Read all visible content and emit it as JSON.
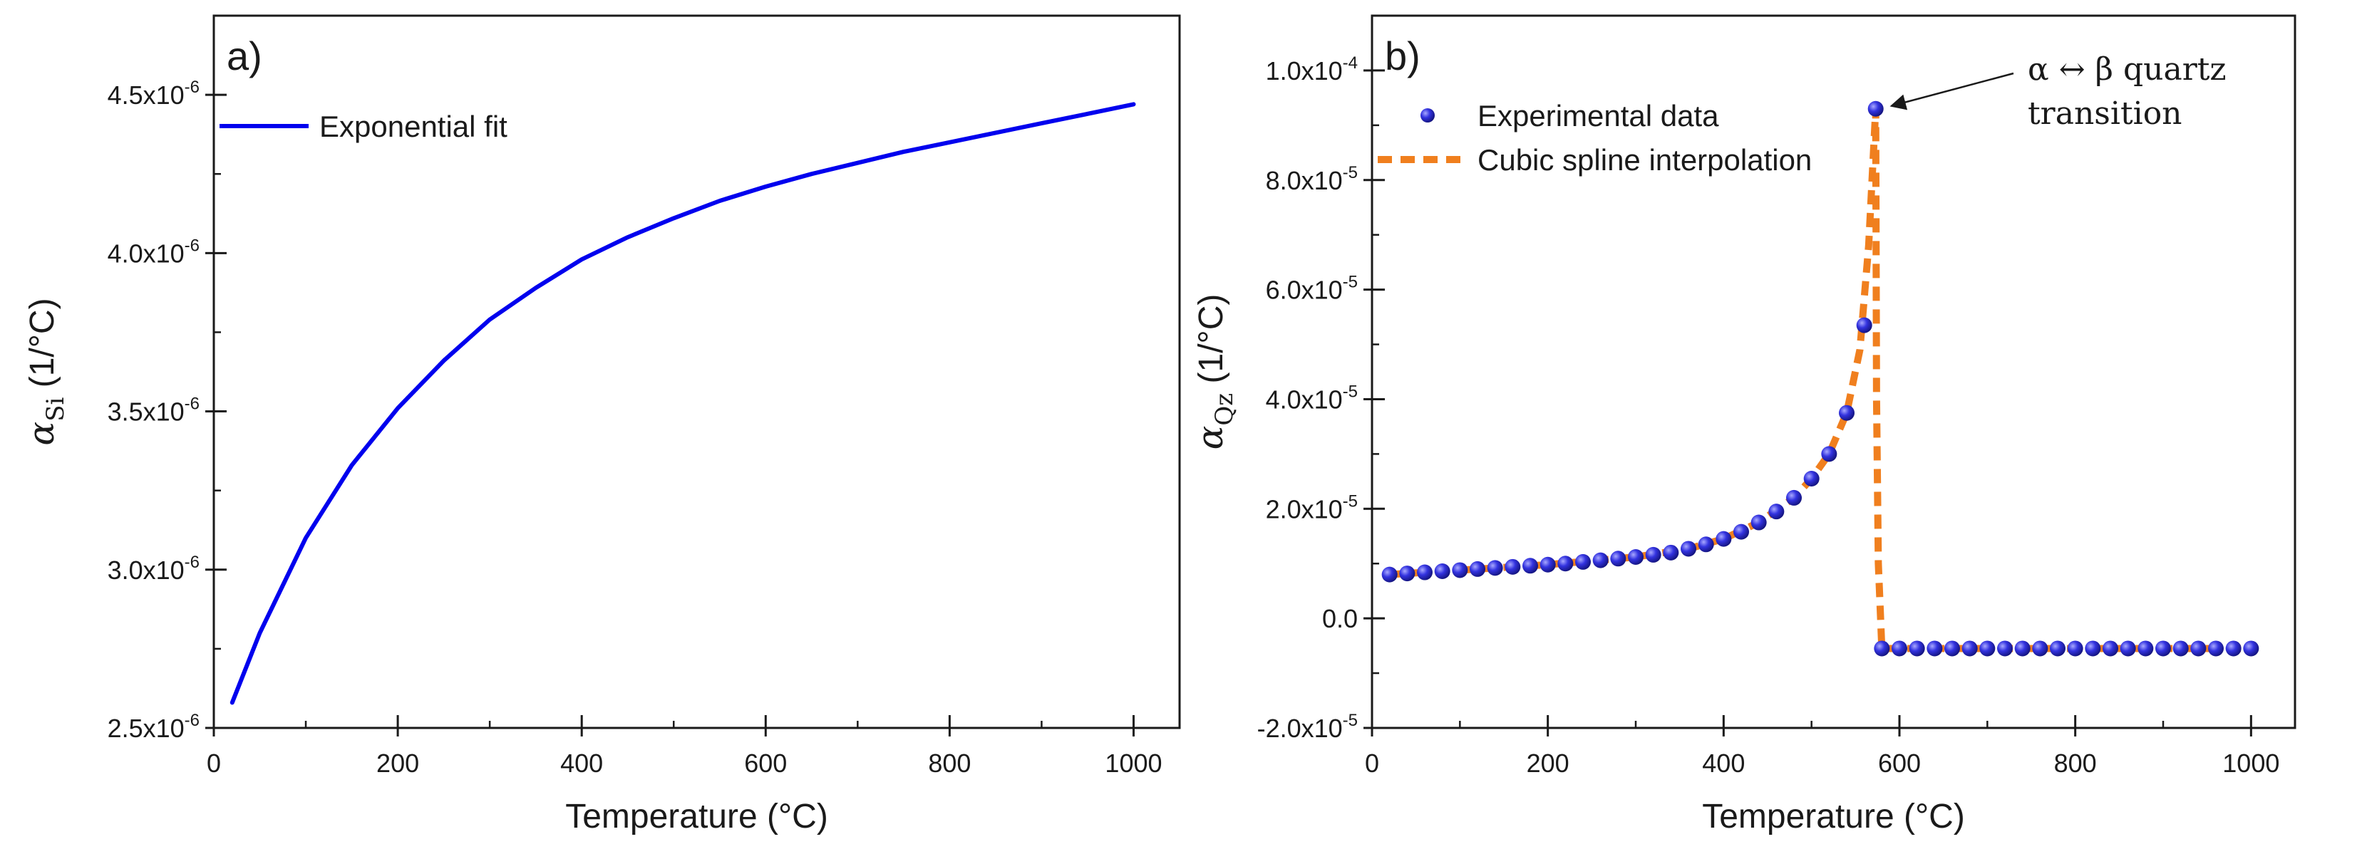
{
  "chart_data": [
    {
      "type": "line",
      "panel_label": "a)",
      "xlabel": "Temperature (°C)",
      "ylabel": {
        "symbol": "α",
        "subscript": "Si",
        "unit": "(1/°C)"
      },
      "xlim": [
        0,
        1050
      ],
      "ylim": [
        2.5e-06,
        4.75e-06
      ],
      "x_ticks": [
        0,
        200,
        400,
        600,
        800,
        1000
      ],
      "y_ticks": [
        {
          "value": 2.5e-06,
          "mantissa": "2.5x10",
          "exp": "-6"
        },
        {
          "value": 3e-06,
          "mantissa": "3.0x10",
          "exp": "-6"
        },
        {
          "value": 3.5e-06,
          "mantissa": "3.5x10",
          "exp": "-6"
        },
        {
          "value": 4e-06,
          "mantissa": "4.0x10",
          "exp": "-6"
        },
        {
          "value": 4.5e-06,
          "mantissa": "4.5x10",
          "exp": "-6"
        }
      ],
      "legend": {
        "placement": "top-left"
      },
      "series": [
        {
          "name": "Exponential fit",
          "style": "solid-line",
          "color": "#0000ee",
          "x": [
            20,
            50,
            100,
            150,
            200,
            250,
            300,
            350,
            400,
            450,
            500,
            550,
            600,
            650,
            700,
            750,
            800,
            850,
            900,
            950,
            1000
          ],
          "y": [
            2.58e-06,
            2.8e-06,
            3.1e-06,
            3.33e-06,
            3.51e-06,
            3.66e-06,
            3.79e-06,
            3.89e-06,
            3.98e-06,
            4.05e-06,
            4.11e-06,
            4.165e-06,
            4.21e-06,
            4.25e-06,
            4.285e-06,
            4.32e-06,
            4.35e-06,
            4.38e-06,
            4.41e-06,
            4.44e-06,
            4.47e-06
          ]
        }
      ]
    },
    {
      "type": "scatter",
      "panel_label": "b)",
      "xlabel": "Temperature (°C)",
      "ylabel": {
        "symbol": "α",
        "subscript": "Qz",
        "unit": "(1/°C)"
      },
      "xlim": [
        0,
        1050
      ],
      "ylim": [
        -2e-05,
        0.00011
      ],
      "x_ticks": [
        0,
        200,
        400,
        600,
        800,
        1000
      ],
      "y_ticks": [
        {
          "value": -2e-05,
          "mantissa": "-2.0x10",
          "exp": "-5"
        },
        {
          "value": 0,
          "mantissa": "0.0",
          "exp": ""
        },
        {
          "value": 2e-05,
          "mantissa": "2.0x10",
          "exp": "-5"
        },
        {
          "value": 4e-05,
          "mantissa": "4.0x10",
          "exp": "-5"
        },
        {
          "value": 6e-05,
          "mantissa": "6.0x10",
          "exp": "-5"
        },
        {
          "value": 8e-05,
          "mantissa": "8.0x10",
          "exp": "-5"
        },
        {
          "value": 0.0001,
          "mantissa": "1.0x10",
          "exp": "-4"
        }
      ],
      "legend": {
        "placement": "top-left"
      },
      "annotation": {
        "lines": [
          "α ↔ β quartz",
          "transition"
        ],
        "points_to": [
          573,
          9.3e-05
        ]
      },
      "series": [
        {
          "name": "Experimental data",
          "style": "markers",
          "color": "#2b2bd6",
          "x": [
            20,
            40,
            60,
            80,
            100,
            120,
            140,
            160,
            180,
            200,
            220,
            240,
            260,
            280,
            300,
            320,
            340,
            360,
            380,
            400,
            420,
            440,
            460,
            480,
            500,
            520,
            540,
            560,
            573,
            580,
            600,
            620,
            640,
            660,
            680,
            700,
            720,
            740,
            760,
            780,
            800,
            820,
            840,
            860,
            880,
            900,
            920,
            940,
            960,
            980,
            1000
          ],
          "y": [
            8e-06,
            8.2e-06,
            8.4e-06,
            8.6e-06,
            8.8e-06,
            9e-06,
            9.2e-06,
            9.4e-06,
            9.6e-06,
            9.8e-06,
            1e-05,
            1.03e-05,
            1.06e-05,
            1.09e-05,
            1.12e-05,
            1.16e-05,
            1.2e-05,
            1.27e-05,
            1.35e-05,
            1.45e-05,
            1.58e-05,
            1.75e-05,
            1.95e-05,
            2.2e-05,
            2.55e-05,
            3e-05,
            3.75e-05,
            5.35e-05,
            9.3e-05,
            -5.5e-06,
            -5.5e-06,
            -5.5e-06,
            -5.5e-06,
            -5.5e-06,
            -5.5e-06,
            -5.5e-06,
            -5.5e-06,
            -5.5e-06,
            -5.5e-06,
            -5.5e-06,
            -5.5e-06,
            -5.5e-06,
            -5.5e-06,
            -5.5e-06,
            -5.5e-06,
            -5.5e-06,
            -5.5e-06,
            -5.5e-06,
            -5.5e-06,
            -5.5e-06,
            -5.5e-06
          ]
        },
        {
          "name": "Cubic spline interpolation",
          "style": "dashed-line",
          "color": "#f07f1e",
          "x": [
            20,
            100,
            200,
            300,
            360,
            400,
            440,
            480,
            500,
            520,
            540,
            555,
            565,
            573,
            574,
            576,
            580,
            600,
            700,
            800,
            900,
            1000
          ],
          "y": [
            8e-06,
            8.8e-06,
            9.8e-06,
            1.12e-05,
            1.27e-05,
            1.45e-05,
            1.75e-05,
            2.2e-05,
            2.55e-05,
            3e-05,
            3.75e-05,
            4.9e-05,
            6.8e-05,
            9.3e-05,
            4e-05,
            1e-05,
            -5.5e-06,
            -5.5e-06,
            -5.5e-06,
            -5.5e-06,
            -5.5e-06,
            -5.5e-06
          ]
        }
      ]
    }
  ]
}
